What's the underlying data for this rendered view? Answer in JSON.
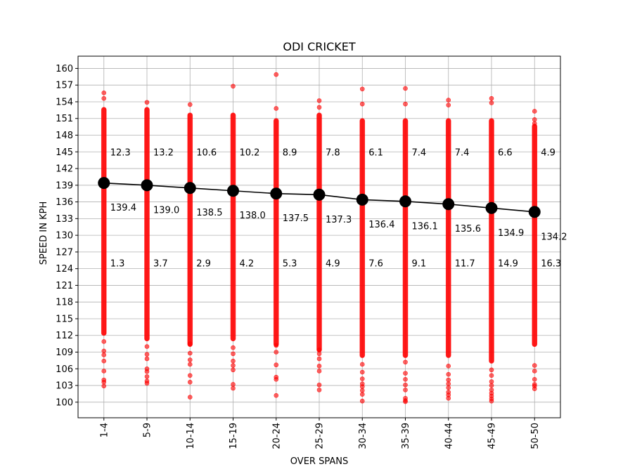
{
  "chart_data": {
    "type": "scatter",
    "title": "ODI CRICKET",
    "xlabel": "OVER SPANS",
    "ylabel": "SPEED IN KPH",
    "categories": [
      "1-4",
      "5-9",
      "10-14",
      "15-19",
      "20-24",
      "25-29",
      "30-34",
      "35-39",
      "40-44",
      "45-49",
      "50-50"
    ],
    "yticks": [
      100,
      103,
      106,
      109,
      112,
      115,
      118,
      121,
      124,
      127,
      130,
      133,
      136,
      139,
      142,
      145,
      148,
      151,
      154,
      157,
      160
    ],
    "ylim": [
      97.2,
      162.2
    ],
    "grid": true,
    "mean_speed": [
      139.4,
      139.0,
      138.5,
      138.0,
      137.5,
      137.3,
      136.4,
      136.1,
      135.6,
      134.9,
      134.2
    ],
    "mean_labels": [
      "139.4",
      "139.0",
      "138.5",
      "138.0",
      "137.5",
      "137.3",
      "136.4",
      "136.1",
      "135.6",
      "134.9",
      "134.2"
    ],
    "upper_labels": [
      "12.3",
      "13.2",
      "10.6",
      "10.2",
      "8.9",
      "7.8",
      "6.1",
      "7.4",
      "7.4",
      "6.6",
      "4.9"
    ],
    "lower_labels": [
      "1.3",
      "3.7",
      "2.9",
      "4.2",
      "5.3",
      "4.9",
      "7.6",
      "9.1",
      "11.7",
      "14.9",
      "16.3"
    ],
    "upper_label_y": 145,
    "lower_label_y": 125,
    "dense_range": [
      [
        112,
        153
      ],
      [
        111,
        153
      ],
      [
        110,
        152
      ],
      [
        111,
        152
      ],
      [
        110,
        151
      ],
      [
        109,
        152
      ],
      [
        108,
        151
      ],
      [
        108,
        151
      ],
      [
        108,
        151
      ],
      [
        107,
        151
      ],
      [
        110,
        150
      ]
    ],
    "outliers": [
      [
        155.6,
        154.6,
        110.9,
        109.2,
        108.5,
        107.4,
        105.6,
        104.0,
        103.6,
        102.9
      ],
      [
        153.9,
        110.0,
        108.6,
        107.8,
        106.0,
        105.5,
        104.6,
        103.8,
        103.4
      ],
      [
        153.5,
        110.5,
        108.8,
        107.6,
        106.8,
        104.8,
        103.6,
        100.9
      ],
      [
        156.8,
        109.8,
        108.7,
        107.4,
        106.6,
        105.8,
        103.2,
        102.5
      ],
      [
        158.9,
        152.8,
        110.2,
        109.0,
        106.7,
        104.5,
        104.1,
        101.2
      ],
      [
        154.2,
        153.0,
        109.4,
        108.7,
        107.8,
        106.5,
        105.6,
        103.1,
        102.2
      ],
      [
        156.3,
        153.6,
        106.8,
        105.4,
        104.2,
        103.3,
        102.8,
        102.1,
        101.4,
        100.2
      ],
      [
        156.4,
        153.6,
        107.2,
        105.2,
        104.1,
        103.1,
        102.2,
        100.7,
        100.3,
        100.1
      ],
      [
        154.3,
        153.4,
        106.5,
        105.0,
        104.0,
        103.3,
        102.6,
        101.8,
        101.3,
        100.7
      ],
      [
        154.6,
        153.8,
        105.8,
        104.8,
        103.7,
        103.0,
        102.2,
        101.6,
        101.1,
        100.6,
        100.2
      ],
      [
        152.3,
        150.8,
        150.1,
        106.6,
        105.6,
        104.1,
        103.2,
        102.9,
        102.4
      ]
    ],
    "colors": {
      "points": "#ff0000",
      "mean": "#000000",
      "grid": "#b0b0b0"
    }
  }
}
